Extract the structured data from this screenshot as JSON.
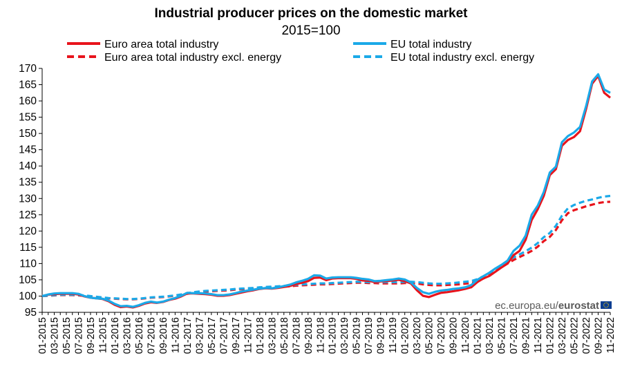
{
  "chart_data": {
    "type": "line",
    "title": "Industrial producer prices on the domestic market",
    "subtitle": "2015=100",
    "xlabel": "",
    "ylabel": "",
    "ylim": [
      95,
      170
    ],
    "yticks": [
      95,
      100,
      105,
      110,
      115,
      120,
      125,
      130,
      135,
      140,
      145,
      150,
      155,
      160,
      165,
      170
    ],
    "grid": false,
    "legend_position": "top",
    "x": [
      "01-2015",
      "02-2015",
      "03-2015",
      "04-2015",
      "05-2015",
      "06-2015",
      "07-2015",
      "08-2015",
      "09-2015",
      "10-2015",
      "11-2015",
      "12-2015",
      "01-2016",
      "02-2016",
      "03-2016",
      "04-2016",
      "05-2016",
      "06-2016",
      "07-2016",
      "08-2016",
      "09-2016",
      "10-2016",
      "11-2016",
      "12-2016",
      "01-2017",
      "02-2017",
      "03-2017",
      "04-2017",
      "05-2017",
      "06-2017",
      "07-2017",
      "08-2017",
      "09-2017",
      "10-2017",
      "11-2017",
      "12-2017",
      "01-2018",
      "02-2018",
      "03-2018",
      "04-2018",
      "05-2018",
      "06-2018",
      "07-2018",
      "08-2018",
      "09-2018",
      "10-2018",
      "11-2018",
      "12-2018",
      "01-2019",
      "02-2019",
      "03-2019",
      "04-2019",
      "05-2019",
      "06-2019",
      "07-2019",
      "08-2019",
      "09-2019",
      "10-2019",
      "11-2019",
      "12-2019",
      "01-2020",
      "02-2020",
      "03-2020",
      "04-2020",
      "05-2020",
      "06-2020",
      "07-2020",
      "08-2020",
      "09-2020",
      "10-2020",
      "11-2020",
      "12-2020",
      "01-2021",
      "02-2021",
      "03-2021",
      "04-2021",
      "05-2021",
      "06-2021",
      "07-2021",
      "08-2021",
      "09-2021",
      "10-2021",
      "11-2021",
      "12-2021",
      "01-2022",
      "02-2022",
      "03-2022",
      "04-2022",
      "05-2022",
      "06-2022",
      "07-2022",
      "08-2022",
      "09-2022",
      "10-2022",
      "11-2022"
    ],
    "xtick_labels": [
      "01-2015",
      "03-2015",
      "05-2015",
      "07-2015",
      "09-2015",
      "11-2015",
      "01-2016",
      "03-2016",
      "05-2016",
      "07-2016",
      "09-2016",
      "11-2016",
      "01-2017",
      "03-2017",
      "05-2017",
      "07-2017",
      "09-2017",
      "11-2017",
      "01-2018",
      "03-2018",
      "05-2018",
      "07-2018",
      "09-2018",
      "11-2018",
      "01-2019",
      "03-2019",
      "05-2019",
      "07-2019",
      "09-2019",
      "11-2019",
      "01-2020",
      "03-2020",
      "05-2020",
      "07-2020",
      "09-2020",
      "11-2020",
      "01-2021",
      "03-2021",
      "05-2021",
      "07-2021",
      "09-2021",
      "11-2021",
      "01-2022",
      "03-2022",
      "05-2022",
      "07-2022",
      "09-2022",
      "11-2022"
    ],
    "series": [
      {
        "name": "Euro area total industry",
        "color": "#e8141c",
        "style": "solid",
        "values": [
          100.0,
          100.4,
          100.6,
          100.7,
          100.7,
          100.7,
          100.5,
          99.9,
          99.5,
          99.3,
          99.1,
          98.4,
          97.3,
          96.6,
          96.8,
          96.5,
          97.0,
          97.7,
          98.1,
          97.9,
          98.2,
          98.8,
          99.2,
          99.9,
          100.8,
          100.8,
          100.7,
          100.6,
          100.4,
          100.1,
          100.1,
          100.3,
          100.7,
          101.1,
          101.5,
          101.8,
          102.2,
          102.4,
          102.3,
          102.5,
          102.8,
          103.1,
          103.7,
          104.1,
          104.6,
          105.6,
          105.7,
          104.9,
          105.4,
          105.5,
          105.5,
          105.5,
          105.3,
          104.8,
          104.7,
          104.3,
          104.5,
          104.6,
          104.8,
          105.0,
          104.6,
          103.9,
          101.8,
          100.1,
          99.7,
          100.4,
          101.0,
          101.2,
          101.5,
          101.8,
          102.2,
          102.7,
          104.3,
          105.4,
          106.2,
          107.5,
          108.8,
          110.0,
          112.6,
          113.9,
          117.3,
          123.4,
          126.7,
          130.8,
          137.2,
          139.0,
          146.2,
          148.0,
          148.9,
          150.7,
          157.5,
          165.3,
          167.7,
          162.5,
          161.0
        ]
      },
      {
        "name": "EU total industry",
        "color": "#1ba9e8",
        "style": "solid",
        "values": [
          100.0,
          100.5,
          100.8,
          100.9,
          100.9,
          100.9,
          100.7,
          100.0,
          99.5,
          99.3,
          99.2,
          98.6,
          97.6,
          96.9,
          97.0,
          96.7,
          97.2,
          97.9,
          98.3,
          98.0,
          98.3,
          98.9,
          99.4,
          100.1,
          101.0,
          100.9,
          100.9,
          100.8,
          100.6,
          100.3,
          100.3,
          100.5,
          100.9,
          101.4,
          101.7,
          102.0,
          102.3,
          102.5,
          102.4,
          102.7,
          103.1,
          103.5,
          104.2,
          104.7,
          105.3,
          106.4,
          106.3,
          105.4,
          105.7,
          105.8,
          105.8,
          105.8,
          105.6,
          105.3,
          105.1,
          104.6,
          104.7,
          104.9,
          105.1,
          105.4,
          105.1,
          104.2,
          102.5,
          101.2,
          100.7,
          101.3,
          101.7,
          101.9,
          102.2,
          102.4,
          102.7,
          103.4,
          105.0,
          106.1,
          107.2,
          108.5,
          109.6,
          110.9,
          113.9,
          115.5,
          118.6,
          125.0,
          127.8,
          132.0,
          138.0,
          139.8,
          147.3,
          149.2,
          150.3,
          152.0,
          158.4,
          166.0,
          168.2,
          163.5,
          162.5
        ]
      },
      {
        "name": "Euro area total industry excl. energy",
        "color": "#e8141c",
        "style": "dashed",
        "values": [
          100.0,
          100.1,
          100.2,
          100.3,
          100.3,
          100.3,
          100.2,
          100.1,
          99.9,
          99.7,
          99.5,
          99.3,
          99.2,
          99.1,
          99.0,
          99.0,
          99.1,
          99.3,
          99.5,
          99.6,
          99.7,
          99.9,
          100.1,
          100.4,
          100.7,
          101.0,
          101.2,
          101.4,
          101.5,
          101.6,
          101.7,
          101.8,
          102.0,
          102.1,
          102.2,
          102.3,
          102.5,
          102.6,
          102.7,
          102.8,
          102.9,
          103.0,
          103.2,
          103.3,
          103.4,
          103.5,
          103.6,
          103.6,
          103.7,
          103.8,
          103.9,
          104.0,
          104.1,
          104.1,
          104.0,
          104.0,
          103.9,
          103.9,
          103.9,
          103.9,
          104.0,
          104.0,
          103.9,
          103.6,
          103.4,
          103.3,
          103.3,
          103.4,
          103.5,
          103.6,
          103.8,
          104.0,
          104.6,
          105.4,
          106.4,
          107.6,
          108.9,
          110.0,
          111.1,
          112.0,
          112.9,
          113.9,
          115.2,
          116.9,
          118.2,
          120.3,
          123.3,
          125.5,
          126.4,
          127.0,
          127.6,
          128.1,
          128.6,
          128.9,
          129.0
        ]
      },
      {
        "name": "EU total industry excl. energy",
        "color": "#1ba9e8",
        "style": "dashed",
        "values": [
          100.0,
          100.1,
          100.3,
          100.4,
          100.4,
          100.4,
          100.3,
          100.2,
          100.0,
          99.8,
          99.6,
          99.4,
          99.3,
          99.2,
          99.1,
          99.1,
          99.2,
          99.4,
          99.6,
          99.7,
          99.8,
          100.0,
          100.2,
          100.5,
          100.9,
          101.2,
          101.4,
          101.6,
          101.7,
          101.8,
          101.9,
          102.0,
          102.2,
          102.3,
          102.4,
          102.5,
          102.7,
          102.8,
          102.9,
          103.0,
          103.1,
          103.3,
          103.5,
          103.6,
          103.7,
          103.8,
          103.9,
          103.9,
          104.0,
          104.1,
          104.2,
          104.3,
          104.4,
          104.4,
          104.3,
          104.3,
          104.3,
          104.3,
          104.3,
          104.3,
          104.4,
          104.4,
          104.3,
          104.1,
          103.9,
          103.8,
          103.8,
          103.9,
          104.0,
          104.2,
          104.4,
          104.6,
          105.2,
          106.1,
          107.1,
          108.3,
          109.6,
          110.8,
          111.9,
          112.8,
          113.8,
          114.9,
          116.3,
          118.1,
          119.4,
          121.6,
          124.7,
          127.0,
          128.0,
          128.7,
          129.3,
          129.7,
          130.2,
          130.6,
          130.8
        ]
      }
    ]
  },
  "source": {
    "url_text": "ec.europa.eu/",
    "brand_text": "eurostat",
    "flag_icon": "eu-flag-icon"
  }
}
